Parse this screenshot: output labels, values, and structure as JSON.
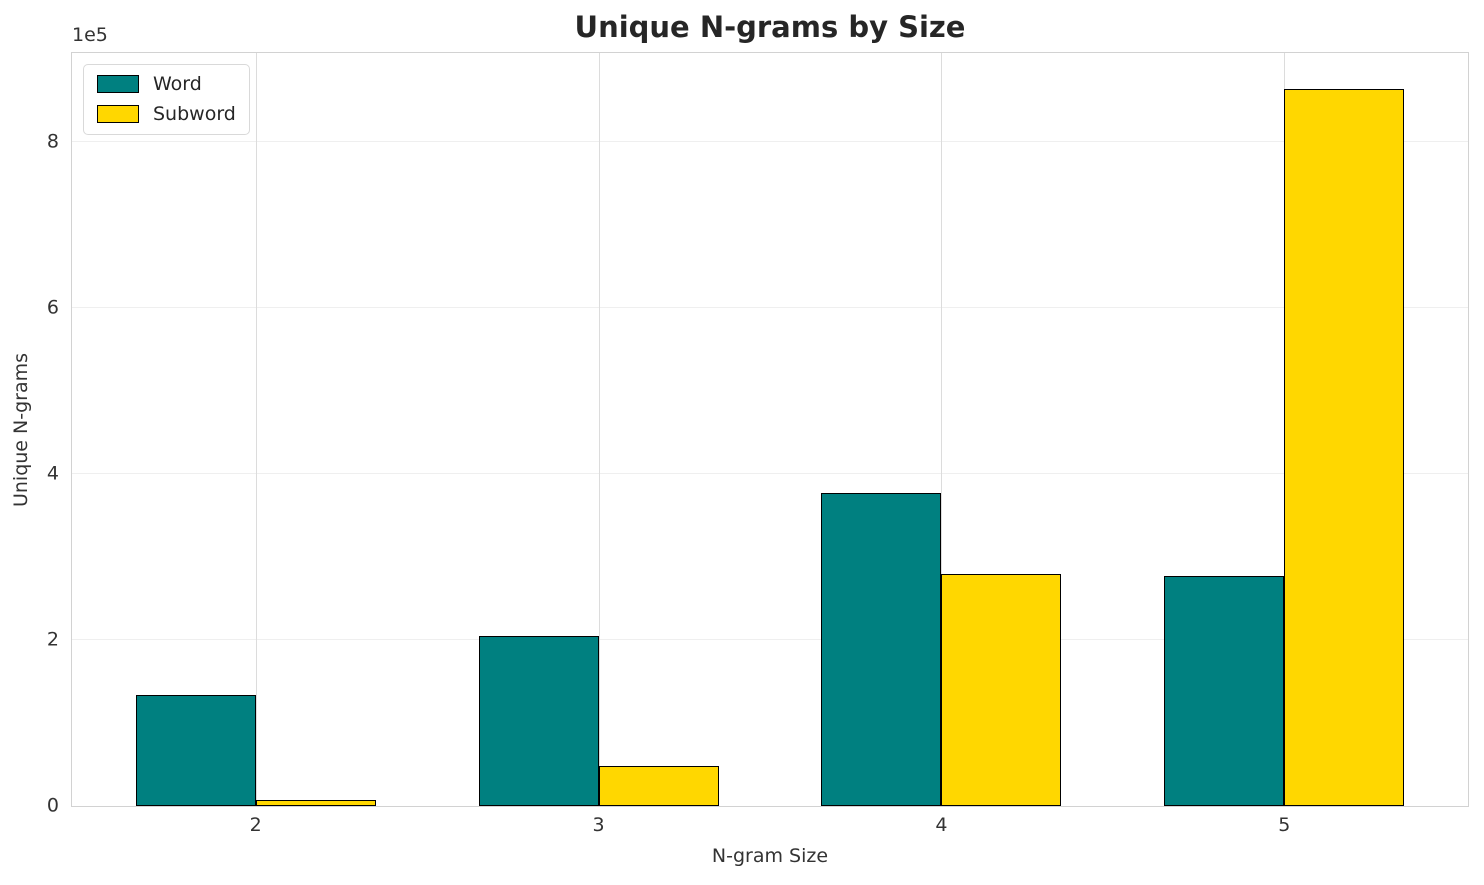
{
  "chart_data": {
    "type": "bar",
    "title": "Unique N-grams by Size",
    "xlabel": "N-gram Size",
    "ylabel": "Unique N-grams",
    "offset_text": "1e5",
    "categories": [
      "2",
      "3",
      "4",
      "5"
    ],
    "series": [
      {
        "name": "Word",
        "color": "#008080",
        "values": [
          134000,
          205000,
          377000,
          277000
        ]
      },
      {
        "name": "Subword",
        "color": "#FFD700",
        "values": [
          7000,
          48000,
          280000,
          864000
        ]
      }
    ],
    "ylim": [
      0,
      907000
    ],
    "yticks": [
      0,
      200000,
      400000,
      600000,
      800000
    ],
    "ytick_labels": [
      "0",
      "2",
      "4",
      "6",
      "8"
    ],
    "grid": true,
    "legend_position": "upper left",
    "bar_edge_color": "#000000"
  }
}
